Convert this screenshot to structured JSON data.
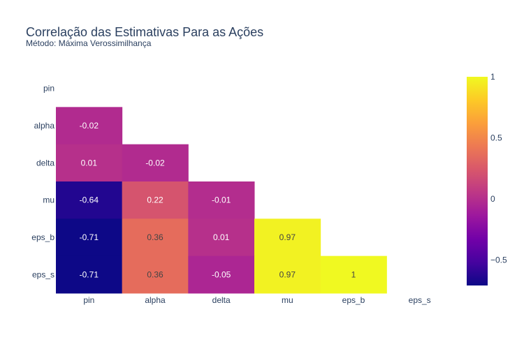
{
  "chart_data": {
    "type": "heatmap",
    "title": "Correlação das Estimativas Para as Ações",
    "subtitle": "Método: Máxima Verossimilhança",
    "x": [
      "pin",
      "alpha",
      "delta",
      "mu",
      "eps_b",
      "eps_s"
    ],
    "y": [
      "pin",
      "alpha",
      "delta",
      "mu",
      "eps_b",
      "eps_s"
    ],
    "z": [
      [
        null,
        null,
        null,
        null,
        null,
        null
      ],
      [
        -0.02,
        null,
        null,
        null,
        null,
        null
      ],
      [
        0.01,
        -0.02,
        null,
        null,
        null,
        null
      ],
      [
        -0.64,
        0.22,
        -0.01,
        null,
        null,
        null
      ],
      [
        -0.71,
        0.36,
        0.01,
        0.97,
        null,
        null
      ],
      [
        -0.71,
        0.36,
        -0.05,
        0.97,
        1,
        null
      ]
    ],
    "text": [
      [
        null,
        null,
        null,
        null,
        null,
        null
      ],
      [
        "-0.02",
        null,
        null,
        null,
        null,
        null
      ],
      [
        "0.01",
        "-0.02",
        null,
        null,
        null,
        null
      ],
      [
        "-0.64",
        "0.22",
        "-0.01",
        null,
        null,
        null
      ],
      [
        "-0.71",
        "0.36",
        "0.01",
        "0.97",
        null,
        null
      ],
      [
        "-0.71",
        "0.36",
        "-0.05",
        "0.97",
        "1",
        null
      ]
    ],
    "zmin": -0.71,
    "zmax": 1,
    "colorscale": [
      "#0d0887",
      "#46039f",
      "#7201a8",
      "#9c179e",
      "#bd3786",
      "#d8576b",
      "#ed7953",
      "#fb9f3a",
      "#fdca26",
      "#f0f921"
    ],
    "colorbar": {
      "ticks": [
        1,
        0.5,
        0,
        -0.5
      ],
      "tick_labels": [
        "1",
        "0.5",
        "0",
        "−0.5"
      ]
    },
    "grid": false
  }
}
